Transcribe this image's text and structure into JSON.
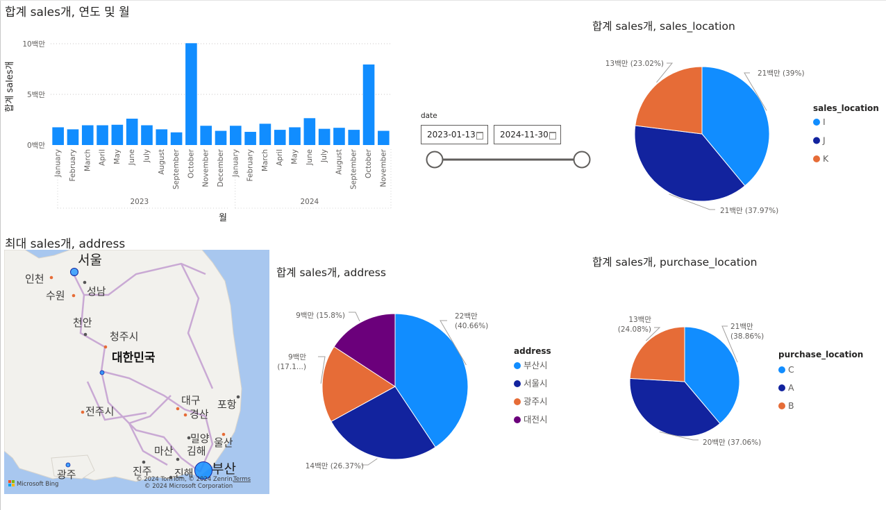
{
  "visuals": {
    "bar_title": "합계 sales개, 연도 및 월",
    "pie_location_title": "합계 sales개, sales_location",
    "map_title": "최대 sales개, address",
    "pie_address_title": "합계 sales개, address",
    "pie_purchase_title": "합계 sales개, purchase_location"
  },
  "slicer": {
    "label": "date",
    "start": "2023-01-13",
    "end": "2024-11-30",
    "range_fraction": [
      0.0,
      1.0
    ]
  },
  "map": {
    "cities": {
      "seoul": "서울",
      "incheon": "인천",
      "seongnam": "성남",
      "suwon": "수원",
      "cheonan": "천안",
      "cheongju": "청주시",
      "country": "대한민국",
      "daegu": "대구",
      "pohang": "포항",
      "gyeongsan": "경산",
      "jeonju": "전주시",
      "miryang": "밀양",
      "ulsan": "울산",
      "masan": "마산",
      "gimhae": "김해",
      "gwangju": "광주",
      "jinju": "진주",
      "jinhae": "진해",
      "busan": "부산"
    },
    "credit_line1": "© 2024 TomTom, © 2024 Zenrin,",
    "credit_terms": "Terms",
    "credit_line2": "© 2024 Microsoft Corporation",
    "logo_text": "Microsoft Bing",
    "colors": {
      "water": "#a8c7ef",
      "land": "#f2f1ed",
      "road": "#c5a8cf",
      "bubble": "#118dff"
    }
  },
  "chart_data": [
    {
      "type": "bar",
      "title": "합계 sales개, 연도 및 월",
      "xlabel": "월",
      "ylabel": "합계 sales개",
      "ylim": [
        0,
        10.5
      ],
      "yticks": [
        "0백만",
        "5백만",
        "10백만"
      ],
      "ytick_values": [
        0,
        5,
        10
      ],
      "year_groups": [
        {
          "label": "2023",
          "count": 12
        },
        {
          "label": "2024",
          "count": 11
        }
      ],
      "categories": [
        "January",
        "February",
        "March",
        "April",
        "May",
        "June",
        "July",
        "August",
        "September",
        "October",
        "November",
        "December",
        "January",
        "February",
        "March",
        "April",
        "May",
        "June",
        "July",
        "August",
        "September",
        "October",
        "November"
      ],
      "values": [
        1.75,
        1.55,
        1.95,
        1.95,
        2.0,
        2.6,
        1.95,
        1.55,
        1.25,
        10.05,
        1.9,
        1.4,
        1.9,
        1.3,
        2.1,
        1.5,
        1.75,
        2.65,
        1.6,
        1.7,
        1.5,
        7.95,
        1.4
      ],
      "color": "#118dff",
      "grid": true
    },
    {
      "type": "pie",
      "title": "합계 sales개, sales_location",
      "legend_title": "sales_location",
      "labels": [
        "I",
        "J",
        "K"
      ],
      "values": [
        39.0,
        37.97,
        23.02
      ],
      "data_labels": [
        "21백만 (39%)",
        "21백만 (37.97%)",
        "13백만 (23.02%)"
      ],
      "colors": [
        "#118dff",
        "#12239e",
        "#e66c37"
      ],
      "legend_position": "right"
    },
    {
      "type": "pie",
      "title": "합계 sales개, address",
      "legend_title": "address",
      "labels": [
        "부산시",
        "서울시",
        "광주시",
        "대전시"
      ],
      "values": [
        40.66,
        26.37,
        17.17,
        15.8
      ],
      "data_labels": [
        [
          "22백만",
          "(40.66%)"
        ],
        [
          "14백만 (26.37%)"
        ],
        [
          "9백만",
          "(17.1...)"
        ],
        [
          "9백만 (15.8%)"
        ]
      ],
      "colors": [
        "#118dff",
        "#12239e",
        "#e66c37",
        "#6b007b"
      ],
      "legend_position": "right"
    },
    {
      "type": "pie",
      "title": "합계 sales개, purchase_location",
      "legend_title": "purchase_location",
      "labels": [
        "C",
        "A",
        "B"
      ],
      "values": [
        38.86,
        37.06,
        24.08
      ],
      "data_labels": [
        [
          "21백만",
          "(38.86%)"
        ],
        [
          "20백만 (37.06%)"
        ],
        [
          "13백만",
          "(24.08%)"
        ]
      ],
      "colors": [
        "#118dff",
        "#12239e",
        "#e66c37"
      ],
      "legend_position": "right"
    }
  ]
}
